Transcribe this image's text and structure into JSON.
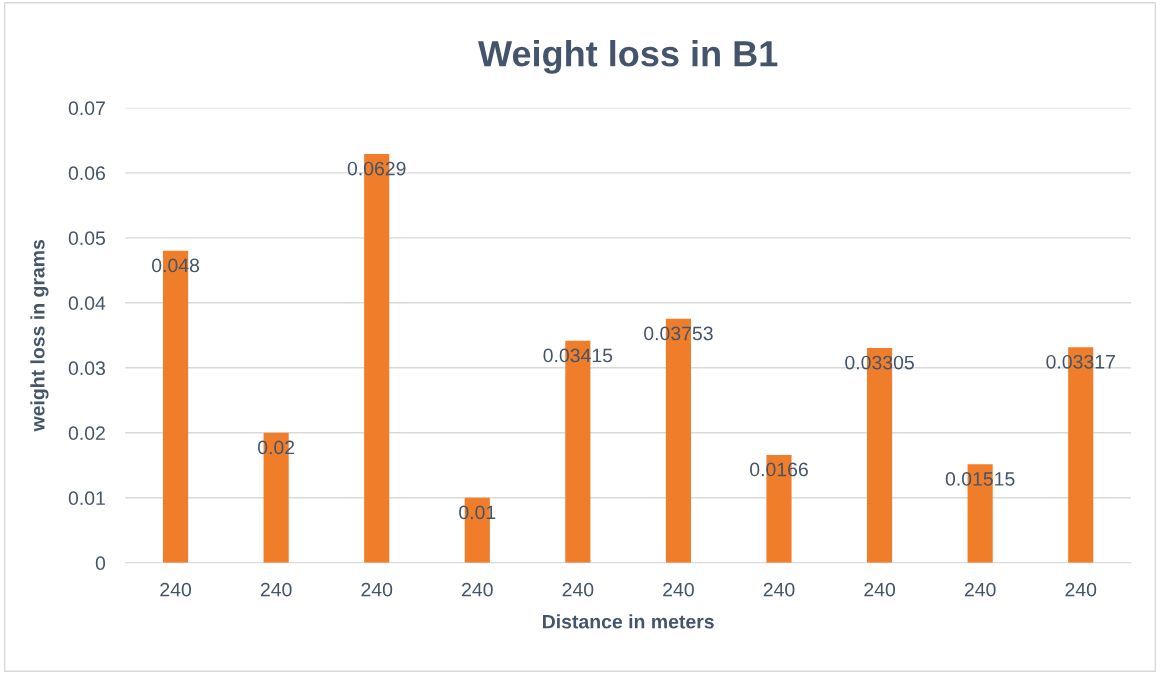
{
  "chart_data": {
    "type": "bar",
    "title": "Weight loss in B1",
    "xlabel": "Distance in meters",
    "ylabel": "weight loss in grams",
    "categories": [
      "240",
      "240",
      "240",
      "240",
      "240",
      "240",
      "240",
      "240",
      "240",
      "240"
    ],
    "values": [
      0.048,
      0.02,
      0.0629,
      0.01,
      0.03415,
      0.03753,
      0.0166,
      0.03305,
      0.01515,
      0.03317
    ],
    "color": "#f07d2a",
    "ylim": [
      0,
      0.07
    ],
    "yticks": [
      0,
      0.01,
      0.02,
      0.03,
      0.04,
      0.05,
      0.06,
      0.07
    ],
    "grid": "y",
    "data_labels": true,
    "legend": false
  }
}
